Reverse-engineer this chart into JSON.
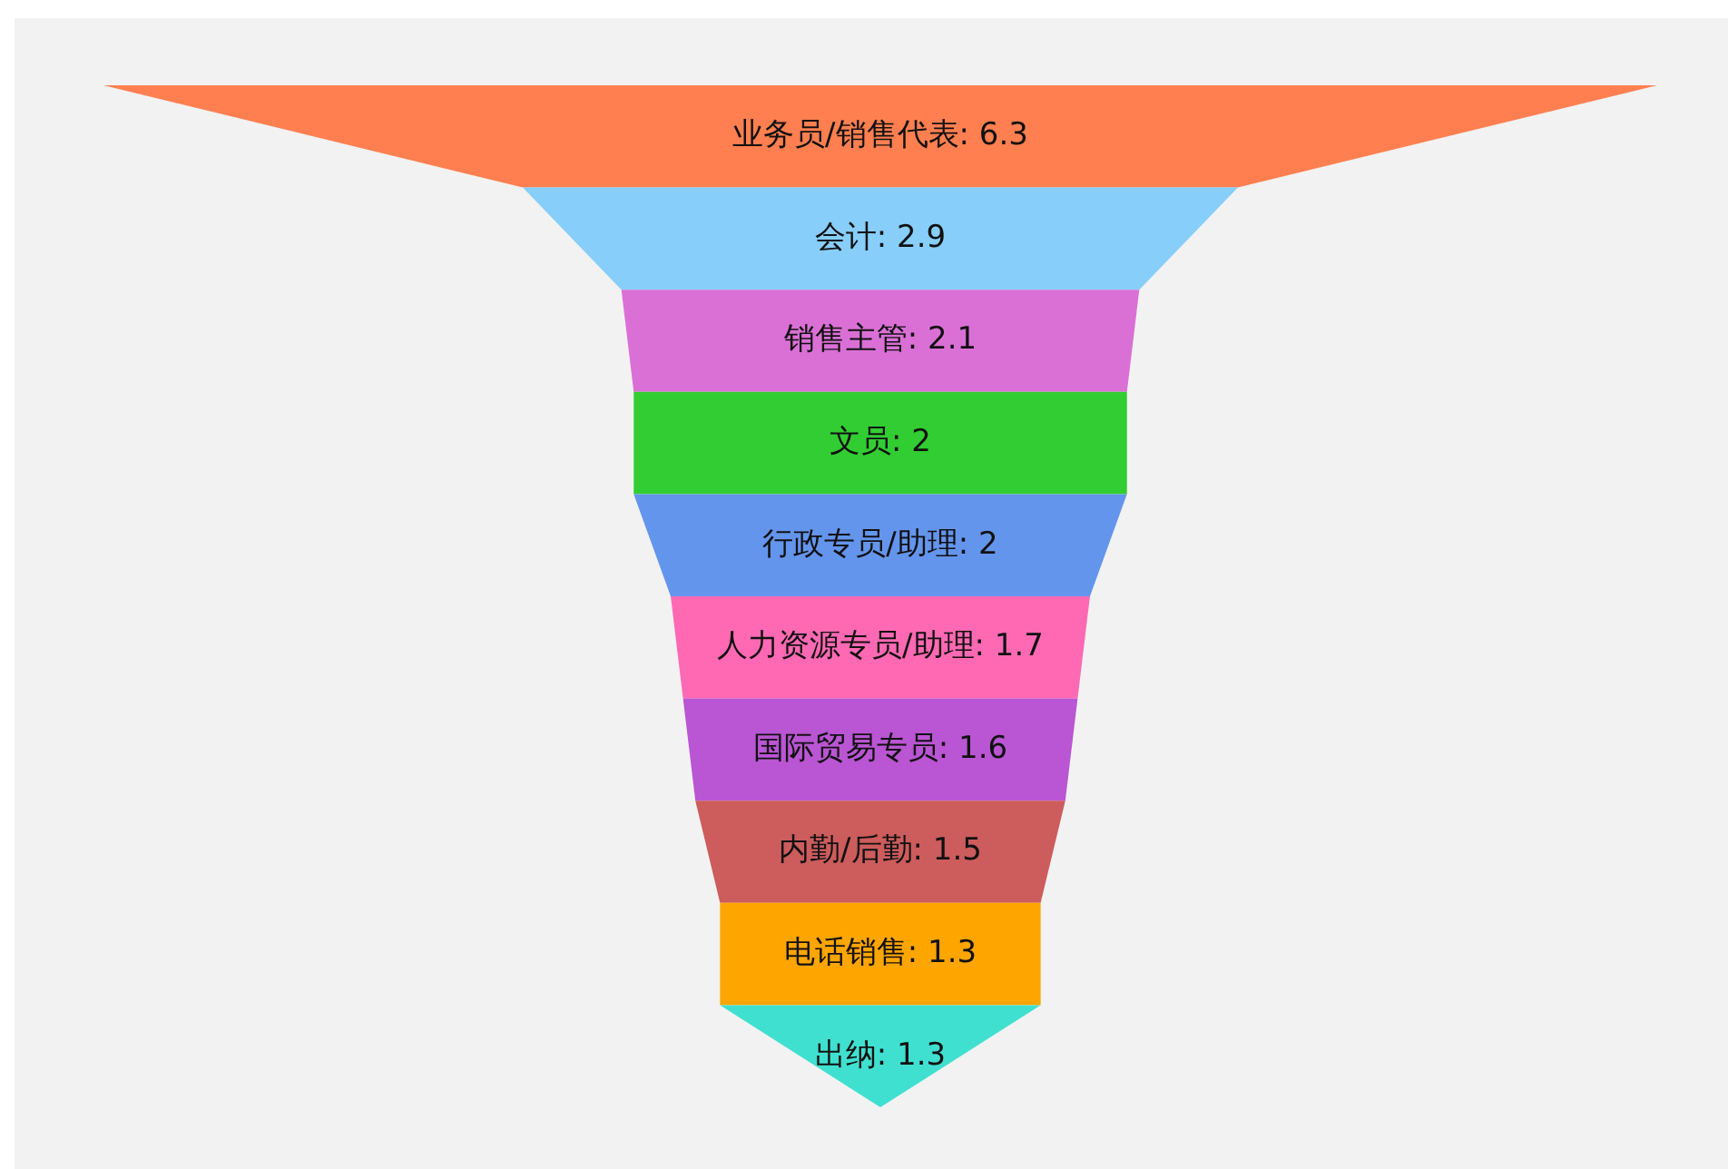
{
  "chart_data": {
    "type": "other",
    "categories": [
      "业务员/销售代表",
      "会计",
      "销售主管",
      "文员",
      "行政专员/助理",
      "人力资源专员/助理",
      "国际贸易专员",
      "内勤/后勤",
      "电话销售",
      "出纳"
    ],
    "values": [
      6.3,
      2.9,
      2.1,
      2,
      2,
      1.7,
      1.6,
      1.5,
      1.3,
      1.3
    ],
    "colors": [
      "#ff7f50",
      "#87cefa",
      "#da70d6",
      "#32cd32",
      "#6495ed",
      "#ff69b4",
      "#ba55d3",
      "#cd5c5c",
      "#ffa500",
      "#40e0d0"
    ],
    "value_labels": [
      ": 6.3",
      ": 2.9",
      ": 2.1",
      ": 2",
      ": 2",
      ": 1.7",
      ": 1.6",
      ": 1.5",
      ": 1.3",
      ": 1.3"
    ]
  }
}
